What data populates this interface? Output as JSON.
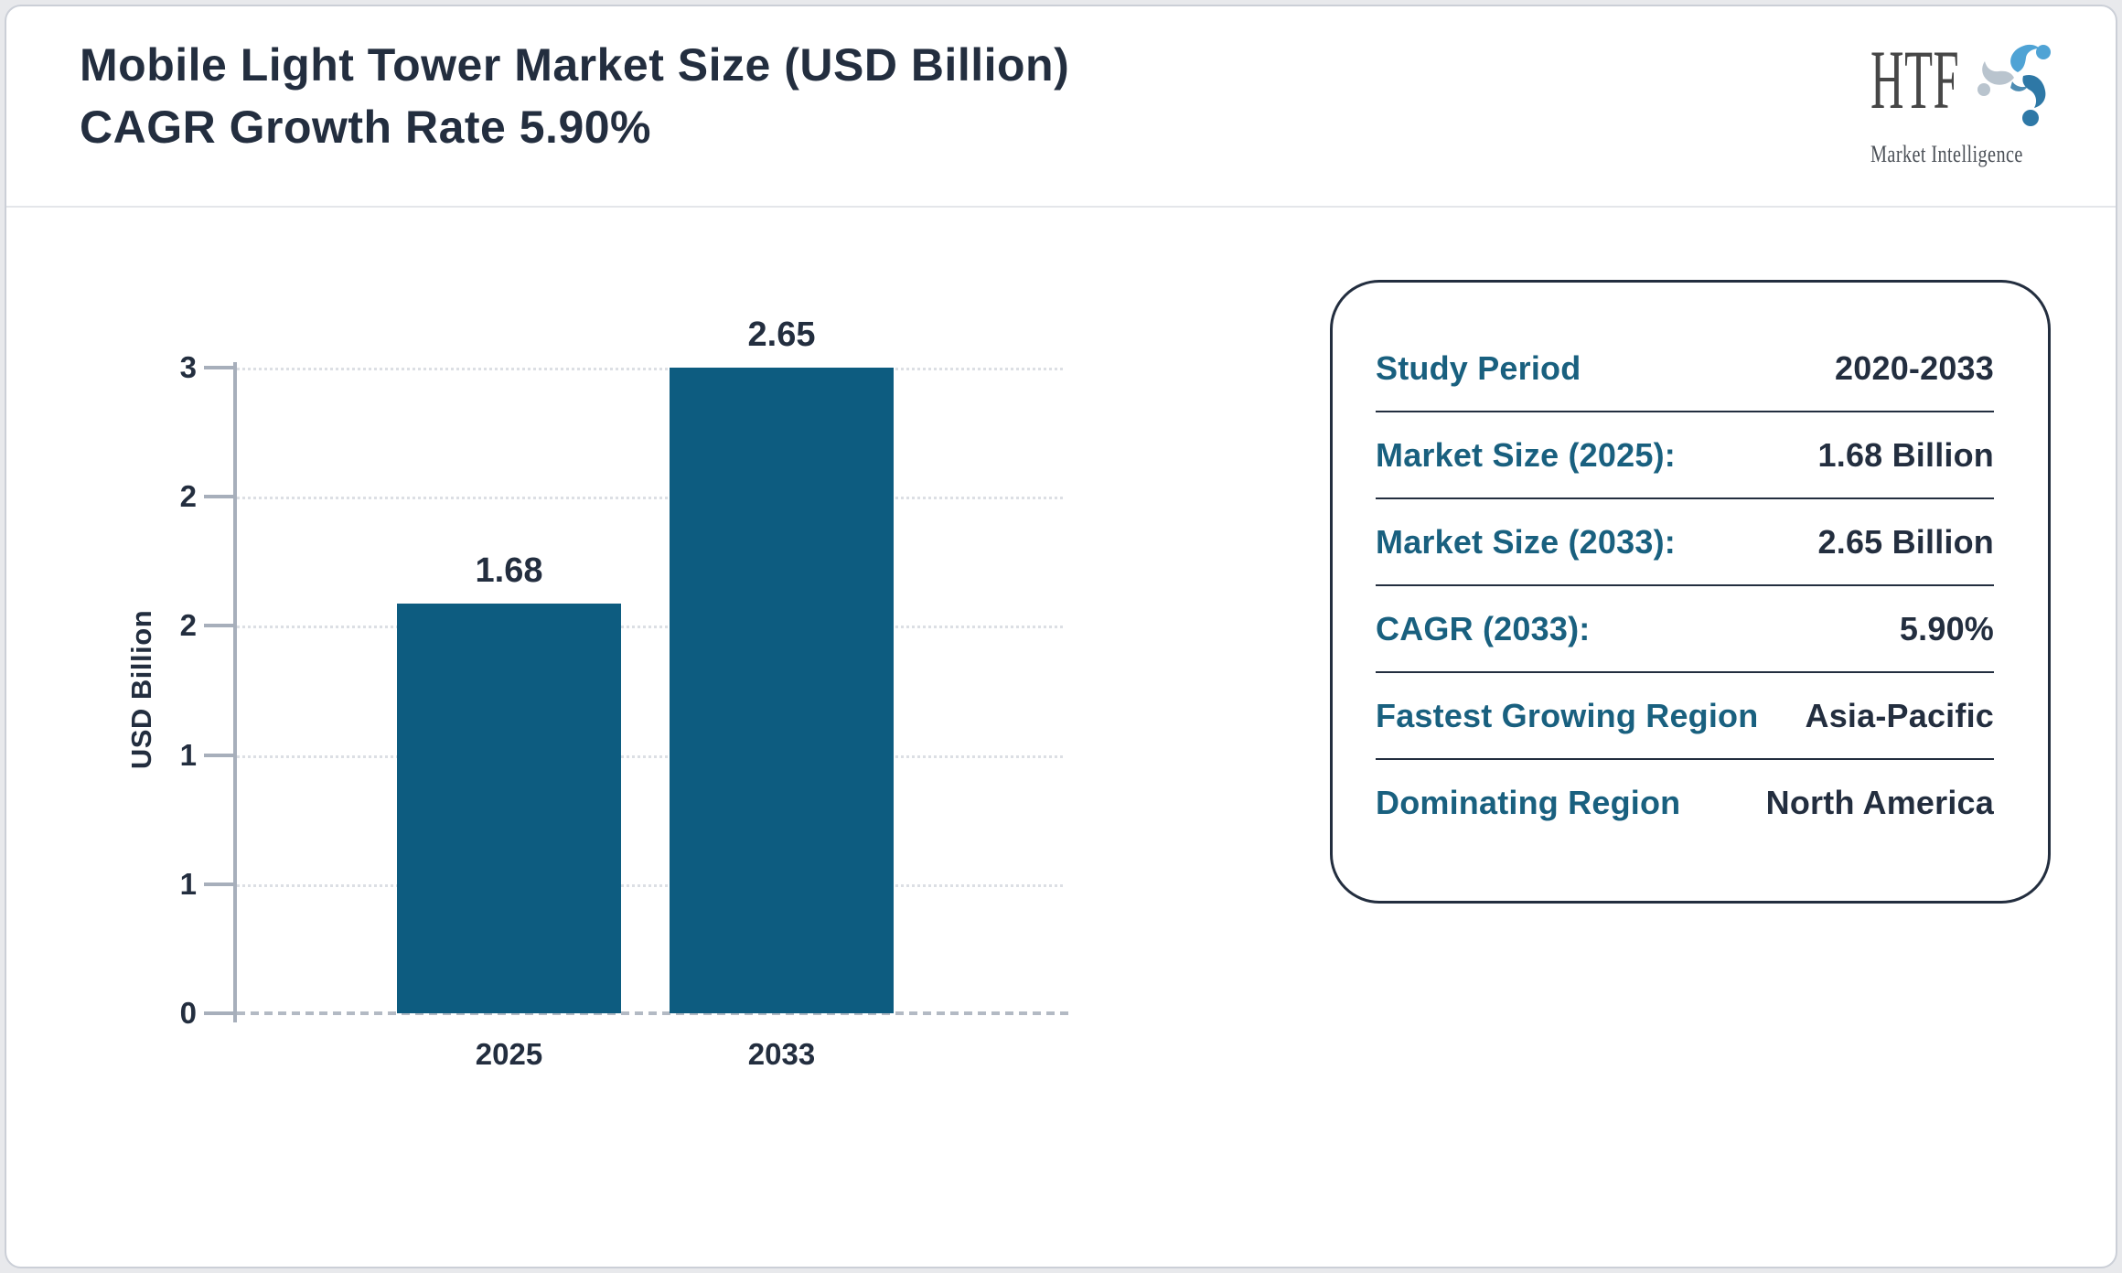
{
  "header": {
    "title_line1": "Mobile Light Tower Market Size (USD Billion)",
    "title_line2": "CAGR Growth Rate 5.90%",
    "logo": {
      "text": "HTF",
      "subtext": "Market Intelligence"
    }
  },
  "chart_data": {
    "type": "bar",
    "title": "Mobile Light Tower Market Size (USD Billion)",
    "categories": [
      "2025",
      "2033"
    ],
    "values": [
      1.68,
      2.65
    ],
    "value_labels": [
      "1.68",
      "2.65"
    ],
    "xlabel": "",
    "ylabel": "USD Billion",
    "ylim": [
      0,
      3
    ],
    "y_tick_labels": [
      "3",
      "2",
      "2",
      "1",
      "1",
      "0"
    ],
    "grid": "horizontal dotted",
    "legend": "none",
    "bar_color": "#0d5c80"
  },
  "info_panel": {
    "rows": [
      {
        "label": "Study Period",
        "value": "2020-2033"
      },
      {
        "label": "Market Size (2025):",
        "value": "1.68 Billion"
      },
      {
        "label": "Market Size (2033):",
        "value": "2.65 Billion"
      },
      {
        "label": "CAGR (2033):",
        "value": "5.90%"
      },
      {
        "label": "Fastest Growing Region",
        "value": "Asia-Pacific"
      },
      {
        "label": "Dominating Region",
        "value": "North America"
      }
    ]
  },
  "colors": {
    "page_bg": "#e8e9ec",
    "navy_text": "#232e3f",
    "teal_accent": "#19607f",
    "bar_teal": "#0d5c80",
    "axis_gray": "#a7afbb",
    "grid_gray": "#dcdfe4",
    "baseline_gray": "#b3bac4",
    "logo_light_blue": "#4fa3d5",
    "logo_dark_blue": "#2e78a6",
    "logo_gray_blue": "#b9c4ce"
  }
}
